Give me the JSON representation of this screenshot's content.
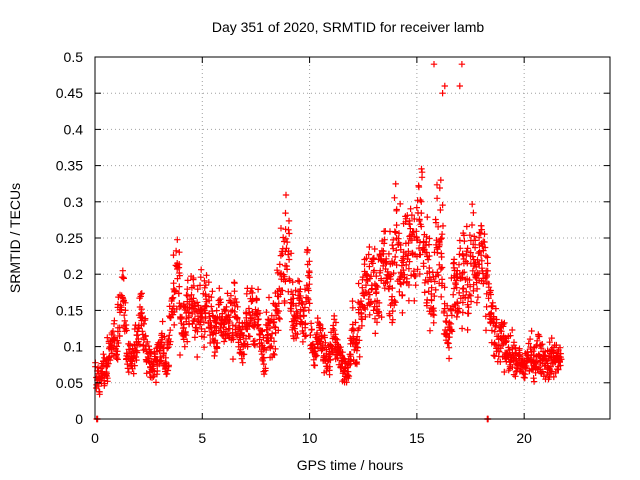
{
  "chart_data": {
    "type": "scatter",
    "title": "Day 351 of 2020, SRMTID for receiver lamb",
    "xlabel": "GPS time / hours",
    "ylabel": "SRMTID / TECUs",
    "xlim": [
      0,
      24
    ],
    "ylim": [
      0,
      0.5
    ],
    "x_ticks": [
      0,
      5,
      10,
      15,
      20
    ],
    "y_ticks": [
      0,
      0.05,
      0.1,
      0.15,
      0.2,
      0.25,
      0.3,
      0.35,
      0.4,
      0.45,
      0.5
    ],
    "x_tick_labels": [
      "0",
      "5",
      "10",
      "15",
      "20"
    ],
    "y_tick_labels": [
      "0",
      "0.05",
      "0.1",
      "0.15",
      "0.2",
      "0.25",
      "0.3",
      "0.35",
      "0.4",
      "0.45",
      "0.5"
    ],
    "grid": true,
    "marker": "+",
    "color": "#ff0000",
    "sample_step_hours": 0.1,
    "series": [
      {
        "name": "SRMTID",
        "x_start": 0.0,
        "x_step": 0.1,
        "values": [
          0.07,
          0.06,
          0.05,
          0.065,
          0.07,
          0.065,
          0.085,
          0.09,
          0.1,
          0.11,
          0.1,
          0.12,
          0.14,
          0.17,
          0.12,
          0.1,
          0.09,
          0.08,
          0.09,
          0.1,
          0.12,
          0.15,
          0.14,
          0.12,
          0.1,
          0.085,
          0.075,
          0.07,
          0.08,
          0.085,
          0.09,
          0.1,
          0.085,
          0.075,
          0.09,
          0.13,
          0.15,
          0.17,
          0.21,
          0.19,
          0.13,
          0.12,
          0.13,
          0.15,
          0.16,
          0.17,
          0.15,
          0.15,
          0.14,
          0.16,
          0.15,
          0.14,
          0.16,
          0.15,
          0.13,
          0.14,
          0.12,
          0.13,
          0.15,
          0.13,
          0.12,
          0.13,
          0.14,
          0.15,
          0.12,
          0.15,
          0.13,
          0.12,
          0.1,
          0.11,
          0.12,
          0.13,
          0.14,
          0.16,
          0.12,
          0.15,
          0.13,
          0.12,
          0.1,
          0.08,
          0.12,
          0.14,
          0.12,
          0.12,
          0.13,
          0.16,
          0.17,
          0.2,
          0.22,
          0.25,
          0.23,
          0.18,
          0.16,
          0.14,
          0.15,
          0.17,
          0.15,
          0.14,
          0.15,
          0.2,
          0.17,
          0.1,
          0.09,
          0.1,
          0.12,
          0.11,
          0.1,
          0.09,
          0.085,
          0.08,
          0.09,
          0.12,
          0.11,
          0.1,
          0.09,
          0.08,
          0.07,
          0.065,
          0.07,
          0.09,
          0.12,
          0.1,
          0.1,
          0.14,
          0.15,
          0.17,
          0.18,
          0.19,
          0.2,
          0.2,
          0.19,
          0.16,
          0.18,
          0.2,
          0.21,
          0.21,
          0.2,
          0.19,
          0.18,
          0.2,
          0.24,
          0.26,
          0.22,
          0.2,
          0.22,
          0.21,
          0.22,
          0.23,
          0.25,
          0.24,
          0.25,
          0.27,
          0.28,
          0.23,
          0.22,
          0.21,
          0.2,
          0.19,
          0.18,
          0.26,
          0.22,
          0.25,
          0.23,
          0.15,
          0.13,
          0.12,
          0.16,
          0.19,
          0.18,
          0.17,
          0.2,
          0.19,
          0.21,
          0.23,
          0.18,
          0.2,
          0.23,
          0.22,
          0.19,
          0.22,
          0.24,
          0.2,
          0.18,
          0.19,
          0.16,
          0.13,
          0.12,
          0.11,
          0.1,
          0.11,
          0.12,
          0.1,
          0.1,
          0.085,
          0.09,
          0.085,
          0.08,
          0.07,
          0.08,
          0.075,
          0.07,
          0.08,
          0.085,
          0.09,
          0.075,
          0.08,
          0.09,
          0.09,
          0.085,
          0.08,
          0.08,
          0.075,
          0.08,
          0.085,
          0.085,
          0.08,
          0.085,
          0.08
        ]
      }
    ],
    "spike_events": [
      {
        "x": 15.8,
        "y": 0.49
      },
      {
        "x": 16.3,
        "y": 0.46
      },
      {
        "x": 17.1,
        "y": 0.49
      },
      {
        "x": 17.0,
        "y": 0.46
      },
      {
        "x": 16.2,
        "y": 0.45
      }
    ],
    "zero_markers": [
      0.1,
      18.3
    ]
  }
}
